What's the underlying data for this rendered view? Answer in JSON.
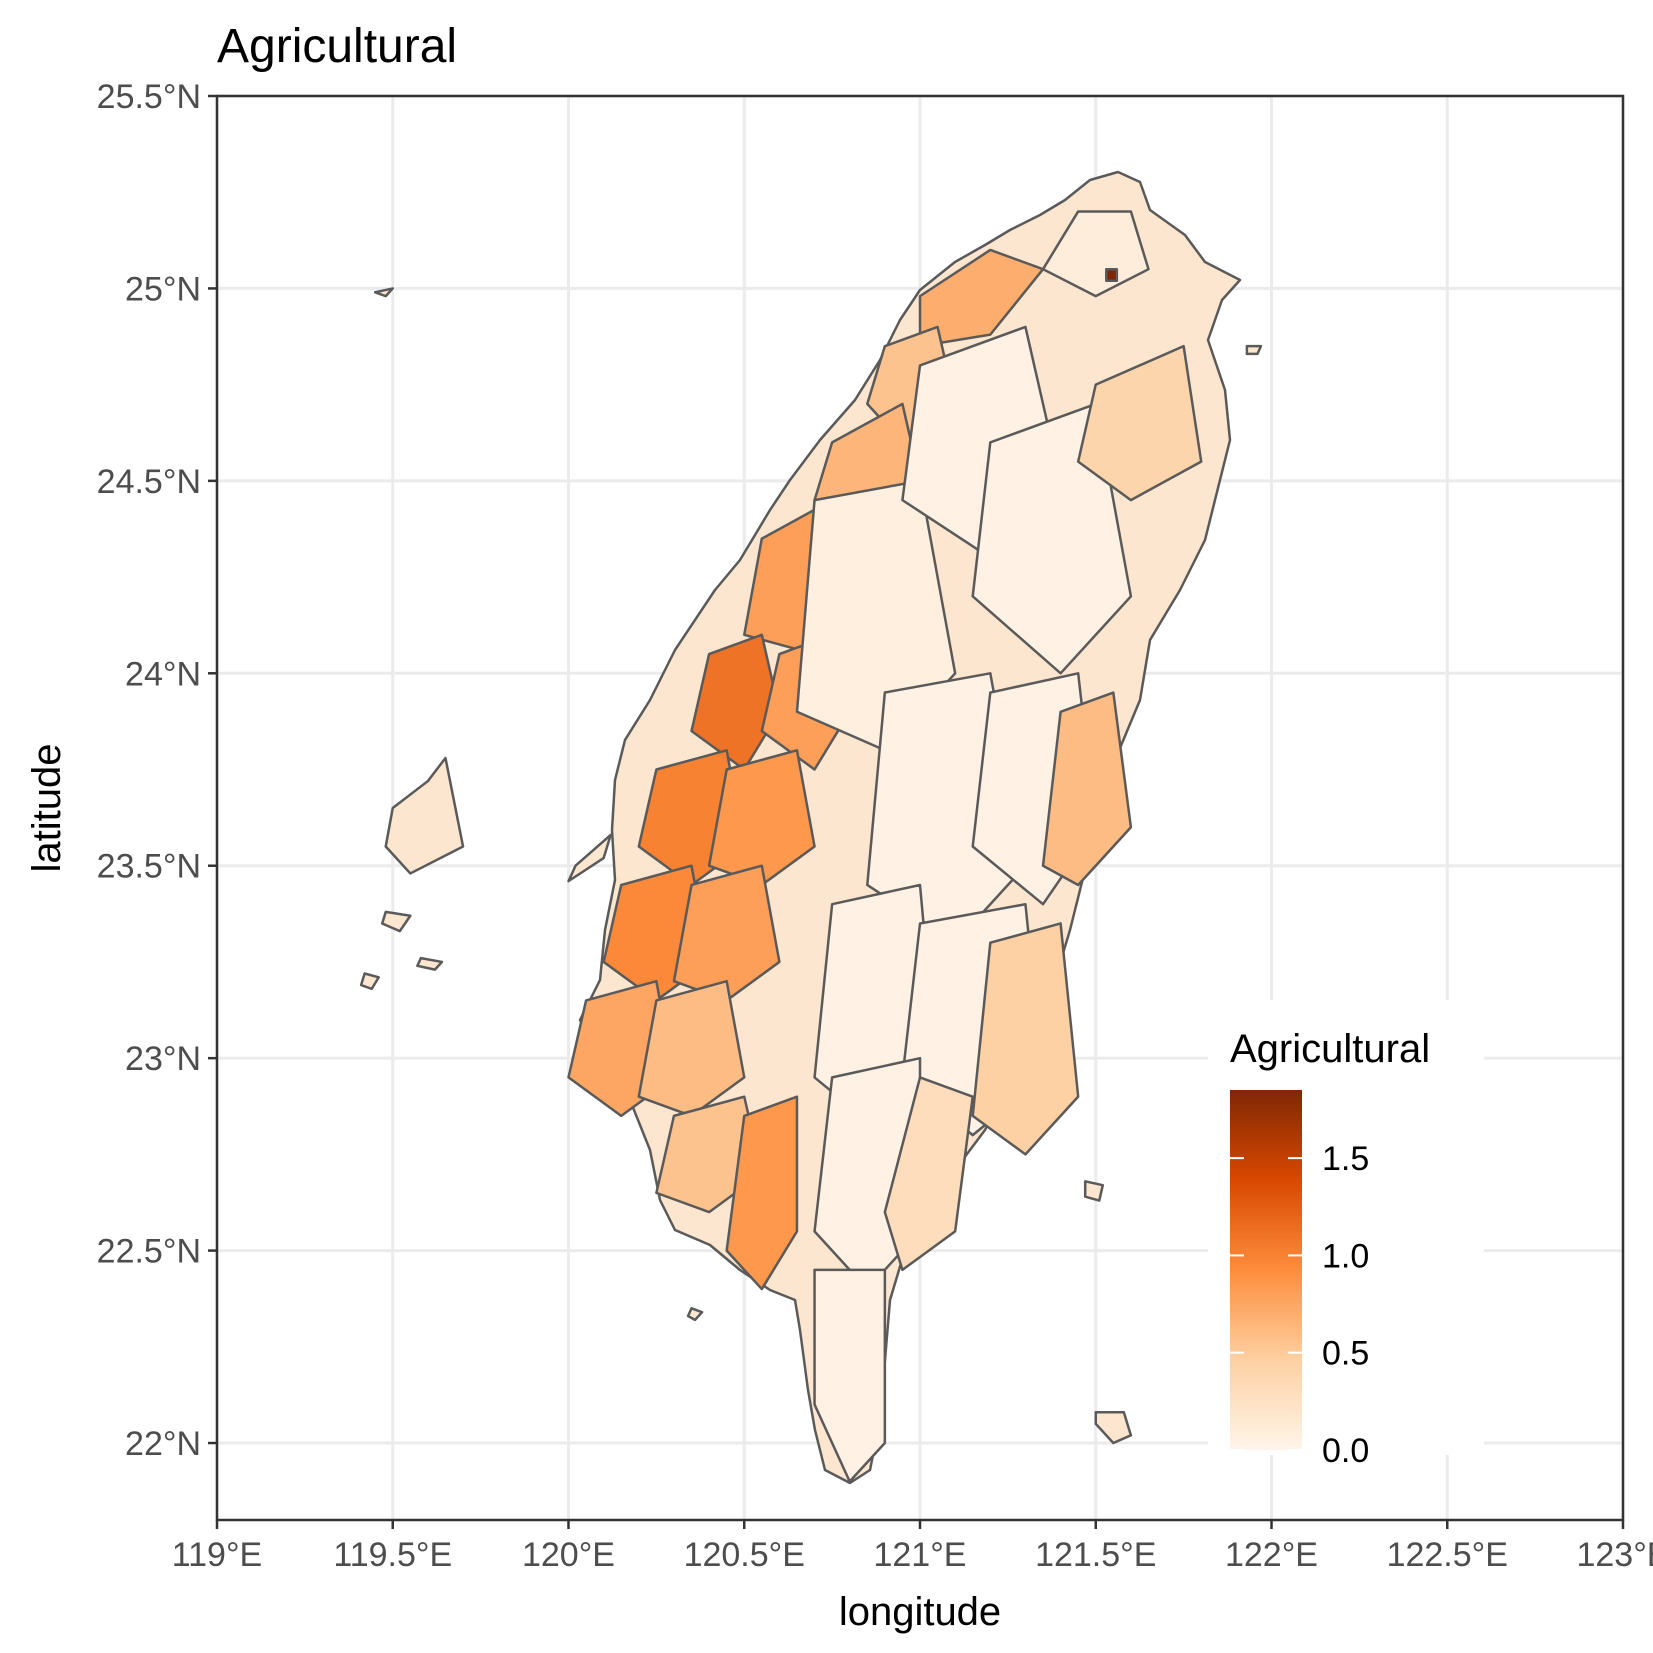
{
  "chart_data": {
    "type": "choropleth",
    "title": "Agricultural",
    "xlabel": "longitude",
    "ylabel": "latitude",
    "xlim": [
      119,
      123
    ],
    "ylim": [
      21.8,
      25.5
    ],
    "x_ticks": [
      119,
      119.5,
      120,
      120.5,
      121,
      121.5,
      122,
      122.5,
      123
    ],
    "x_tick_labels": [
      "119°E",
      "119.5°E",
      "120°E",
      "120.5°E",
      "121°E",
      "121.5°E",
      "122°E",
      "122.5°E",
      "123°E"
    ],
    "y_ticks": [
      22,
      22.5,
      23,
      23.5,
      24,
      24.5,
      25,
      25.5
    ],
    "y_tick_labels": [
      "22°N",
      "22.5°N",
      "23°N",
      "23.5°N",
      "24°N",
      "24.5°N",
      "25°N",
      "25.5°N"
    ],
    "grid": true,
    "legend": {
      "title": "Agricultural",
      "placement": "bottom-right inside",
      "range": [
        0,
        1.85
      ],
      "breaks": [
        0.0,
        0.5,
        1.0,
        1.5
      ],
      "break_labels": [
        "0.0",
        "0.5",
        "1.0",
        "1.5"
      ],
      "colors": [
        "#fff5eb",
        "#fdd0a2",
        "#fd8d3c",
        "#d94801",
        "#7f2704"
      ]
    },
    "regions": [
      {
        "lon": [
          121.45,
          121.6,
          121.65,
          121.5,
          121.35
        ],
        "lat": [
          25.2,
          25.2,
          25.05,
          24.98,
          25.05
        ],
        "value": 0.1
      },
      {
        "lon": [
          121.0,
          121.2,
          121.35,
          121.2,
          121.0
        ],
        "lat": [
          24.98,
          25.1,
          25.05,
          24.88,
          24.85
        ],
        "value": 0.7
      },
      {
        "lon": [
          120.9,
          121.05,
          121.1,
          120.95,
          120.85
        ],
        "lat": [
          24.85,
          24.9,
          24.7,
          24.6,
          24.7
        ],
        "value": 0.55
      },
      {
        "lon": [
          120.75,
          120.95,
          121.0,
          120.85,
          120.7
        ],
        "lat": [
          24.6,
          24.7,
          24.5,
          24.35,
          24.45
        ],
        "value": 0.65
      },
      {
        "lon": [
          120.55,
          120.75,
          120.85,
          120.7,
          120.5
        ],
        "lat": [
          24.35,
          24.45,
          24.25,
          24.05,
          24.1
        ],
        "value": 0.8
      },
      {
        "lon": [
          120.4,
          120.55,
          120.6,
          120.5,
          120.35
        ],
        "lat": [
          24.05,
          24.1,
          23.9,
          23.75,
          23.85
        ],
        "value": 1.1
      },
      {
        "lon": [
          120.6,
          120.75,
          120.8,
          120.7,
          120.55
        ],
        "lat": [
          24.05,
          24.1,
          23.9,
          23.75,
          23.85
        ],
        "value": 0.8
      },
      {
        "lon": [
          120.25,
          120.45,
          120.5,
          120.35,
          120.2
        ],
        "lat": [
          23.75,
          23.8,
          23.55,
          23.45,
          23.55
        ],
        "value": 1.0
      },
      {
        "lon": [
          120.45,
          120.65,
          120.7,
          120.55,
          120.4
        ],
        "lat": [
          23.75,
          23.8,
          23.55,
          23.45,
          23.5
        ],
        "value": 0.85
      },
      {
        "lon": [
          120.15,
          120.35,
          120.4,
          120.25,
          120.1
        ],
        "lat": [
          23.45,
          23.5,
          23.25,
          23.15,
          23.25
        ],
        "value": 0.95
      },
      {
        "lon": [
          120.35,
          120.55,
          120.6,
          120.45,
          120.3
        ],
        "lat": [
          23.45,
          23.5,
          23.25,
          23.15,
          23.2
        ],
        "value": 0.8
      },
      {
        "lon": [
          120.05,
          120.25,
          120.3,
          120.15,
          120.0
        ],
        "lat": [
          23.15,
          23.2,
          22.95,
          22.85,
          22.95
        ],
        "value": 0.75
      },
      {
        "lon": [
          120.25,
          120.45,
          120.5,
          120.35,
          120.2
        ],
        "lat": [
          23.15,
          23.2,
          22.95,
          22.85,
          22.9
        ],
        "value": 0.6
      },
      {
        "lon": [
          120.3,
          120.5,
          120.55,
          120.4,
          120.25
        ],
        "lat": [
          22.85,
          22.9,
          22.7,
          22.6,
          22.65
        ],
        "value": 0.55
      },
      {
        "lon": [
          120.5,
          120.65,
          120.65,
          120.55,
          120.45
        ],
        "lat": [
          22.85,
          22.9,
          22.55,
          22.4,
          22.5
        ],
        "value": 0.85
      },
      {
        "lon": [
          120.7,
          121.0,
          121.1,
          120.9,
          120.65
        ],
        "lat": [
          24.45,
          24.5,
          24.0,
          23.8,
          23.9
        ],
        "value": 0.08
      },
      {
        "lon": [
          121.0,
          121.3,
          121.4,
          121.2,
          120.95
        ],
        "lat": [
          24.8,
          24.9,
          24.5,
          24.3,
          24.45
        ],
        "value": 0.05
      },
      {
        "lon": [
          121.2,
          121.5,
          121.6,
          121.4,
          121.15
        ],
        "lat": [
          24.6,
          24.7,
          24.2,
          24.0,
          24.2
        ],
        "value": 0.05
      },
      {
        "lon": [
          121.5,
          121.75,
          121.8,
          121.6,
          121.45
        ],
        "lat": [
          24.75,
          24.85,
          24.55,
          24.45,
          24.55
        ],
        "value": 0.4
      },
      {
        "lon": [
          120.9,
          121.2,
          121.3,
          121.1,
          120.85
        ],
        "lat": [
          23.95,
          24.0,
          23.5,
          23.3,
          23.45
        ],
        "value": 0.05
      },
      {
        "lon": [
          121.2,
          121.45,
          121.5,
          121.35,
          121.15
        ],
        "lat": [
          23.95,
          24.0,
          23.6,
          23.4,
          23.55
        ],
        "value": 0.05
      },
      {
        "lon": [
          121.4,
          121.55,
          121.6,
          121.45,
          121.35
        ],
        "lat": [
          23.9,
          23.95,
          23.6,
          23.45,
          23.5
        ],
        "value": 0.6
      },
      {
        "lon": [
          120.75,
          121.0,
          121.05,
          120.9,
          120.7
        ],
        "lat": [
          23.4,
          23.45,
          22.95,
          22.8,
          22.95
        ],
        "value": 0.05
      },
      {
        "lon": [
          121.0,
          121.3,
          121.35,
          121.15,
          120.95
        ],
        "lat": [
          23.35,
          23.4,
          22.95,
          22.8,
          22.95
        ],
        "value": 0.05
      },
      {
        "lon": [
          121.2,
          121.4,
          121.45,
          121.3,
          121.15
        ],
        "lat": [
          23.3,
          23.35,
          22.9,
          22.75,
          22.85
        ],
        "value": 0.45
      },
      {
        "lon": [
          120.75,
          121.0,
          121.0,
          120.85,
          120.7
        ],
        "lat": [
          22.95,
          23.0,
          22.55,
          22.4,
          22.55
        ],
        "value": 0.05
      },
      {
        "lon": [
          121.0,
          121.15,
          121.1,
          120.95,
          120.9
        ],
        "lat": [
          22.95,
          22.9,
          22.55,
          22.45,
          22.6
        ],
        "value": 0.3
      },
      {
        "lon": [
          120.7,
          120.9,
          120.9,
          120.8,
          120.7
        ],
        "lat": [
          22.45,
          22.45,
          22.0,
          21.9,
          22.1
        ],
        "value": 0.05
      },
      {
        "lon": [
          121.53,
          121.56,
          121.56,
          121.53
        ],
        "lat": [
          25.05,
          25.05,
          25.02,
          25.02
        ],
        "value": 1.85
      }
    ],
    "islands": [
      {
        "lon": [
          119.45,
          119.5,
          119.48
        ],
        "lat": [
          24.99,
          25.0,
          24.98
        ]
      },
      {
        "lon": [
          119.5,
          119.6,
          119.65,
          119.7,
          119.55,
          119.48
        ],
        "lat": [
          23.65,
          23.72,
          23.78,
          23.55,
          23.48,
          23.55
        ]
      },
      {
        "lon": [
          119.48,
          119.55,
          119.52,
          119.47
        ],
        "lat": [
          23.38,
          23.37,
          23.33,
          23.35
        ]
      },
      {
        "lon": [
          119.42,
          119.46,
          119.44,
          119.41
        ],
        "lat": [
          23.22,
          23.21,
          23.18,
          23.19
        ]
      },
      {
        "lon": [
          119.58,
          119.64,
          119.62,
          119.57
        ],
        "lat": [
          23.26,
          23.25,
          23.23,
          23.24
        ]
      },
      {
        "lon": [
          121.47,
          121.52,
          121.51,
          121.47
        ],
        "lat": [
          22.68,
          22.67,
          22.63,
          22.64
        ]
      },
      {
        "lon": [
          121.5,
          121.58,
          121.6,
          121.55,
          121.5
        ],
        "lat": [
          22.08,
          22.08,
          22.02,
          22.0,
          22.05
        ]
      },
      {
        "lon": [
          120.35,
          120.38,
          120.36,
          120.34
        ],
        "lat": [
          22.35,
          22.34,
          22.32,
          22.33
        ]
      },
      {
        "lon": [
          121.93,
          121.97,
          121.96,
          121.93
        ],
        "lat": [
          24.85,
          24.85,
          24.83,
          24.83
        ]
      },
      {
        "lon": [
          120.02,
          120.12,
          120.1,
          120.0
        ],
        "lat": [
          23.5,
          23.58,
          23.52,
          23.46
        ]
      }
    ]
  }
}
